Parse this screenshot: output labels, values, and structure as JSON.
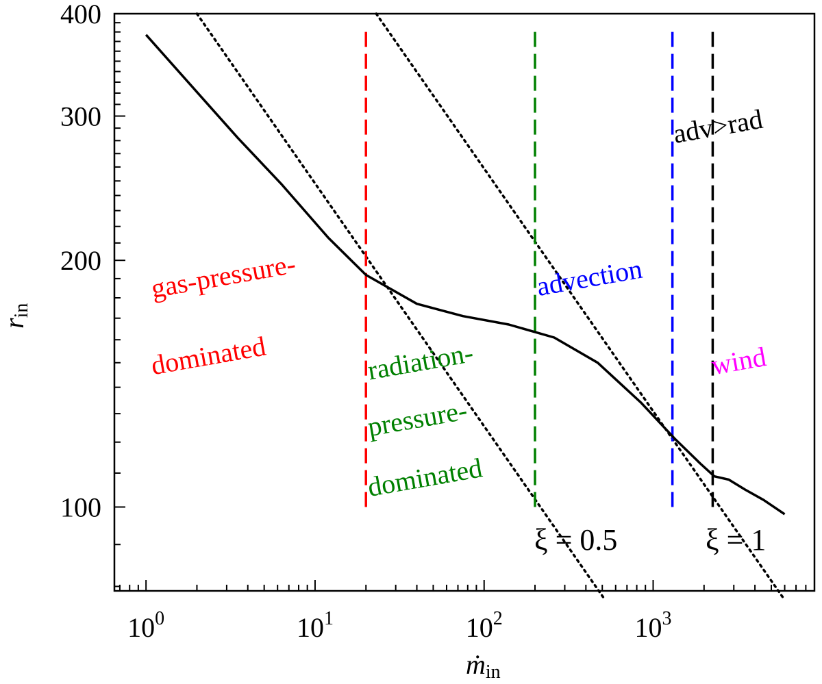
{
  "chart_data": {
    "type": "line",
    "xscale": "log",
    "yscale": "log",
    "xlim": [
      0.65,
      9000
    ],
    "ylim": [
      79,
      400
    ],
    "xlabel": "ṁ",
    "xlabel_sub": "in",
    "ylabel": "r",
    "ylabel_sub": "in",
    "x_ticks": [
      {
        "value": 1,
        "base": "10",
        "exp": "0"
      },
      {
        "value": 10,
        "base": "10",
        "exp": "1"
      },
      {
        "value": 100,
        "base": "10",
        "exp": "2"
      },
      {
        "value": 1000,
        "base": "10",
        "exp": "3"
      }
    ],
    "y_ticks": [
      {
        "value": 100,
        "label": "100"
      },
      {
        "value": 200,
        "label": "200"
      },
      {
        "value": 300,
        "label": "300"
      },
      {
        "value": 400,
        "label": "400"
      }
    ],
    "series": [
      {
        "name": "r_in(ṁ_in)",
        "color": "#000000",
        "style": "solid",
        "x": [
          1,
          2,
          3.5,
          6.3,
          12,
          20,
          40,
          75,
          140,
          260,
          470,
          850,
          1350,
          1900,
          2300,
          2800,
          3500,
          4500,
          6000
        ],
        "y": [
          377,
          321,
          282,
          248,
          213,
          192,
          177,
          171,
          167,
          161,
          150,
          134,
          121,
          113,
          109,
          108,
          105,
          102,
          98
        ]
      }
    ],
    "reference_lines": [
      {
        "name": "xi-0.5",
        "label": "ξ = 0.5",
        "color": "#000000",
        "style": "dotted",
        "x": [
          2,
          520
        ],
        "y": [
          400,
          77
        ]
      },
      {
        "name": "xi-1",
        "label": "ξ = 1",
        "color": "#000000",
        "style": "dotted",
        "x": [
          23,
          6000
        ],
        "y": [
          400,
          77
        ]
      }
    ],
    "vertical_lines": [
      {
        "name": "gas-radiation-boundary",
        "x": 20,
        "y_range": [
          100,
          380
        ],
        "color": "#ff0000",
        "style": "dashed"
      },
      {
        "name": "radiation-advection-boundary",
        "x": 200,
        "y_range": [
          100,
          380
        ],
        "color": "#008000",
        "style": "dashed"
      },
      {
        "name": "advection-wind-boundary",
        "x": 1300,
        "y_range": [
          100,
          380
        ],
        "color": "#0000ff",
        "style": "dashed"
      },
      {
        "name": "adv-rad-boundary",
        "x": 2250,
        "y_range": [
          100,
          380
        ],
        "color": "#000000",
        "style": "dashed"
      }
    ],
    "annotations": [
      {
        "name": "gas-pressure-label",
        "lines": [
          "gas-pressure-",
          "dominated"
        ],
        "color": "#ff0000",
        "x": 1.1,
        "y": [
          180,
          145
        ],
        "rotate": -10
      },
      {
        "name": "radiation-pressure-label",
        "lines": [
          "radiation-",
          "pressure-",
          "dominated"
        ],
        "color": "#008000",
        "x": 21,
        "y": [
          143,
          122,
          103
        ],
        "rotate": -10
      },
      {
        "name": "advection-label",
        "lines": [
          "advection"
        ],
        "color": "#0000ff",
        "x": 210,
        "y": [
          181
        ],
        "rotate": -10
      },
      {
        "name": "wind-label",
        "lines": [
          "wind"
        ],
        "color": "#ff00ff",
        "x": 2270,
        "y": [
          145
        ],
        "rotate": -10
      },
      {
        "name": "adv-rad-label",
        "lines": [
          "adv>rad"
        ],
        "color": "#000000",
        "x": 1350,
        "y": [
          278
        ],
        "rotate": -10
      }
    ]
  }
}
